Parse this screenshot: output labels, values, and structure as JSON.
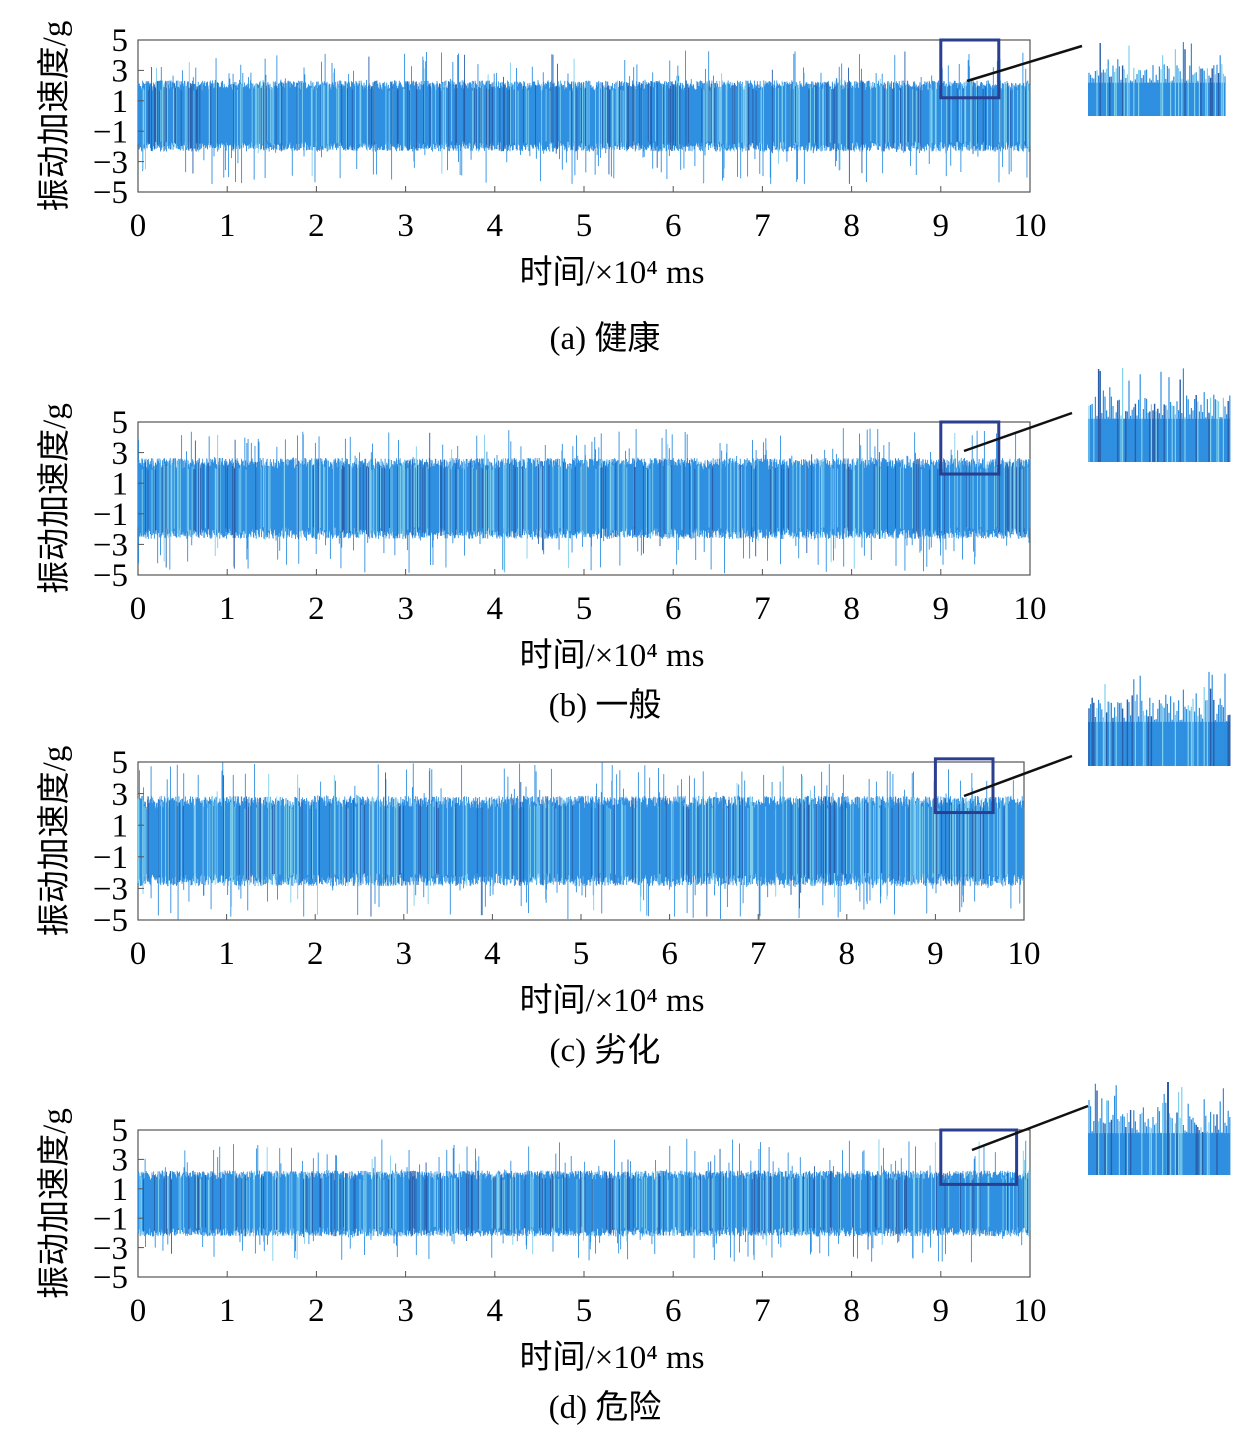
{
  "figure": {
    "colors": {
      "signal": "#2f8fe0",
      "signal_spike_light": "#7fd0ec",
      "signal_spike_dark": "#2a5ea8",
      "axes": "#555555",
      "zoom_box": "#2a3f8f",
      "callout_line": "#111111"
    }
  },
  "chart_data": [
    {
      "type": "line",
      "caption": "(a) 健康",
      "xlabel": "时间/×10⁴ ms",
      "ylabel": "振动加速度/g",
      "xlim": [
        0,
        10
      ],
      "ylim": [
        -5,
        5
      ],
      "xticks": [
        "0",
        "1",
        "2",
        "3",
        "4",
        "5",
        "6",
        "7",
        "8",
        "9",
        "10"
      ],
      "yticks": [
        "5",
        "3",
        "1",
        "−1",
        "−3",
        "−5"
      ],
      "signal": {
        "envelope_amplitude": 2.3,
        "max_peak": 4.3,
        "min_peak": -4.5
      },
      "zoom_region": {
        "x": [
          9.0,
          9.65
        ],
        "y": [
          1.2,
          5.0
        ]
      },
      "grid": false
    },
    {
      "type": "line",
      "caption": "(b) 一般",
      "xlabel": "时间/×10⁴ ms",
      "ylabel": "振动加速度/g",
      "xlim": [
        0,
        10
      ],
      "ylim": [
        -5,
        5
      ],
      "xticks": [
        "0",
        "1",
        "2",
        "3",
        "4",
        "5",
        "6",
        "7",
        "8",
        "9",
        "10"
      ],
      "yticks": [
        "5",
        "3",
        "1",
        "−1",
        "−3",
        "−5"
      ],
      "signal": {
        "envelope_amplitude": 2.6,
        "max_peak": 4.6,
        "min_peak": -4.9
      },
      "zoom_region": {
        "x": [
          9.0,
          9.65
        ],
        "y": [
          1.6,
          5.0
        ]
      },
      "grid": false
    },
    {
      "type": "line",
      "caption": "(c) 劣化",
      "xlabel": "时间/×10⁴ ms",
      "ylabel": "振动加速度/g",
      "xlim": [
        0,
        10
      ],
      "ylim": [
        -5,
        5
      ],
      "xticks": [
        "0",
        "1",
        "2",
        "3",
        "4",
        "5",
        "6",
        "7",
        "8",
        "9",
        "10"
      ],
      "yticks": [
        "5",
        "3",
        "1",
        "−1",
        "−3",
        "−5"
      ],
      "signal": {
        "envelope_amplitude": 2.8,
        "max_peak": 5.0,
        "min_peak": -5.0
      },
      "zoom_region": {
        "x": [
          9.0,
          9.65
        ],
        "y": [
          1.8,
          5.2
        ]
      },
      "grid": false
    },
    {
      "type": "line",
      "caption": "(d) 危险",
      "xlabel": "时间/×10⁴ ms",
      "ylabel": "振动加速度/g",
      "xlim": [
        0,
        10
      ],
      "ylim": [
        -5,
        5
      ],
      "xticks": [
        "0",
        "1",
        "2",
        "3",
        "4",
        "5",
        "6",
        "7",
        "8",
        "9",
        "10"
      ],
      "yticks": [
        "5",
        "3",
        "1",
        "−1",
        "−3",
        "−5"
      ],
      "signal": {
        "envelope_amplitude": 2.2,
        "max_peak": 4.4,
        "min_peak": -4.0
      },
      "zoom_region": {
        "x": [
          9.0,
          9.85
        ],
        "y": [
          1.3,
          5.0
        ]
      },
      "grid": false
    }
  ]
}
